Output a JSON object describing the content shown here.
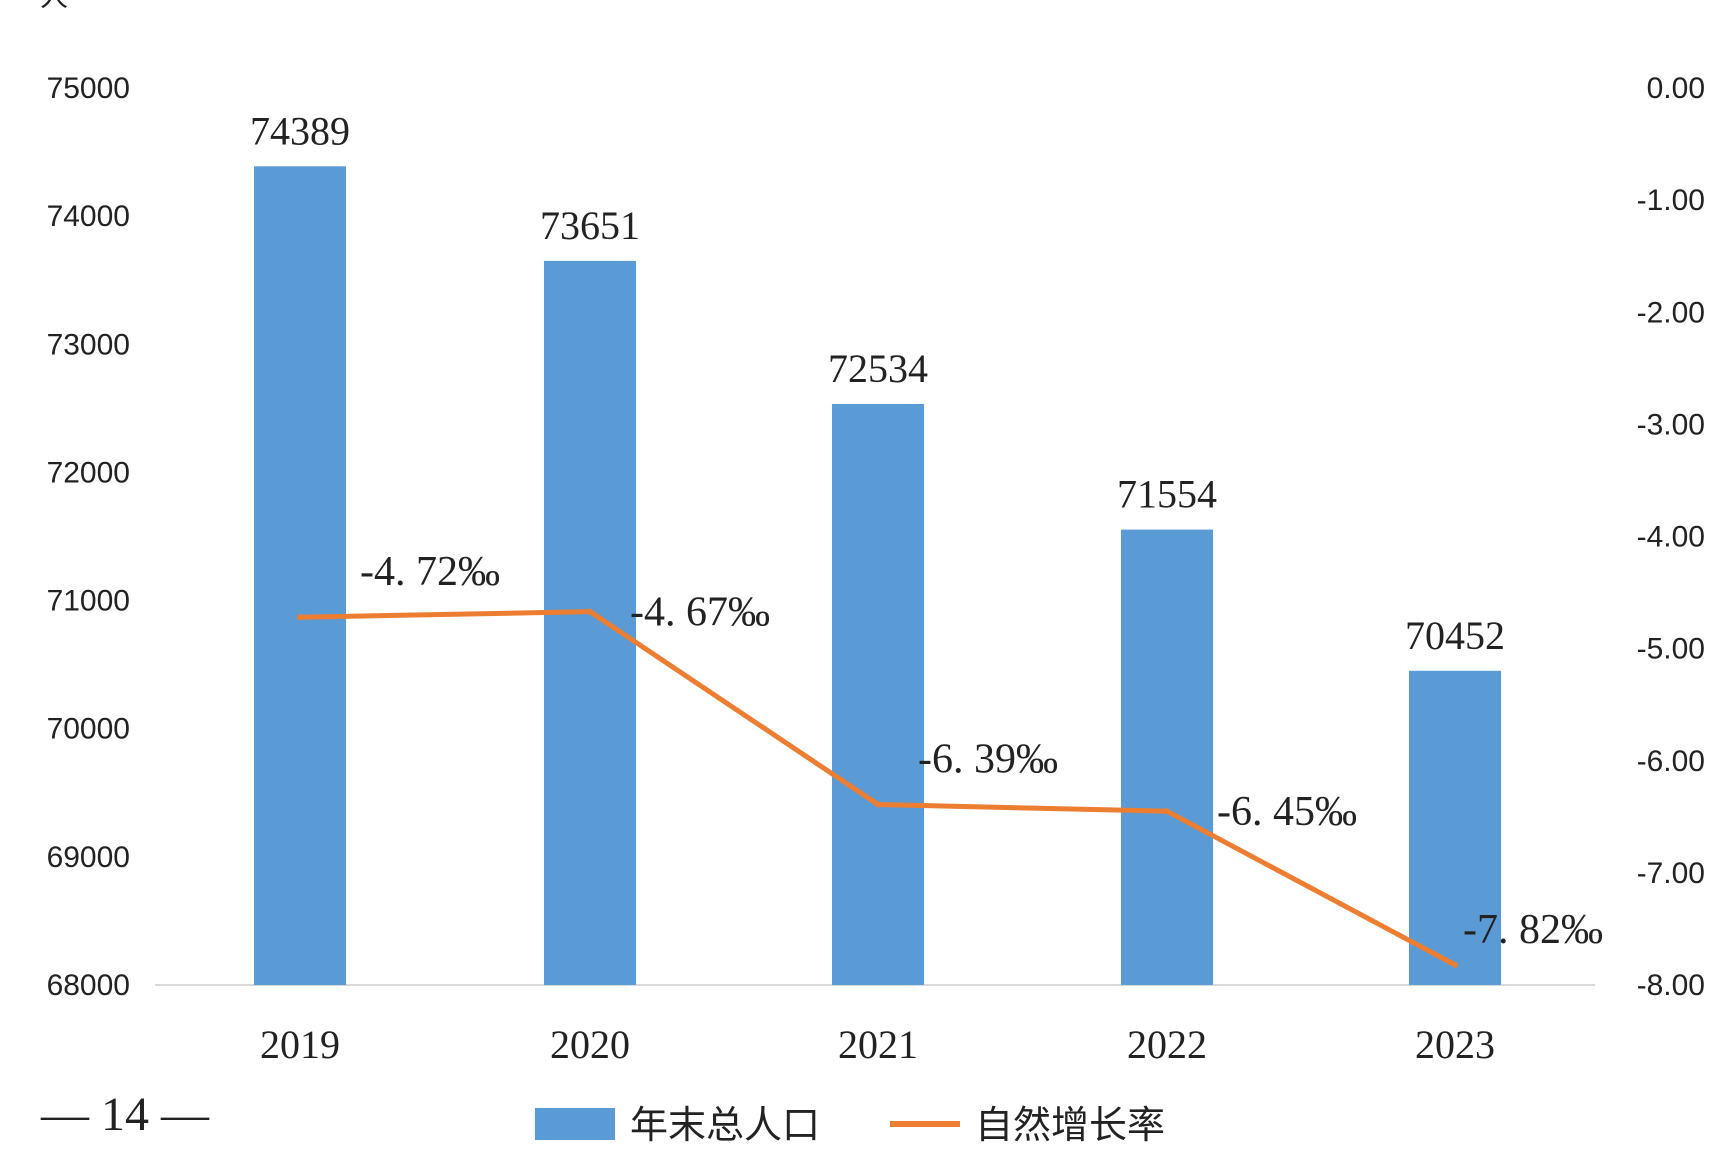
{
  "page_number": "— 14 —",
  "chart_data": {
    "type": "bar+line",
    "title": "",
    "y_unit_label": "人",
    "categories": [
      "2019",
      "2020",
      "2021",
      "2022",
      "2023"
    ],
    "series": [
      {
        "name": "年末总人口",
        "type": "bar",
        "axis": "left",
        "values": [
          74389,
          73651,
          72534,
          71554,
          70452
        ],
        "labels": [
          "74389",
          "73651",
          "72534",
          "71554",
          "70452"
        ],
        "color": "#5b9bd5"
      },
      {
        "name": "自然增长率",
        "type": "line",
        "axis": "right",
        "values": [
          -4.72,
          -4.67,
          -6.39,
          -6.45,
          -7.82
        ],
        "labels": [
          "-4. 72‰",
          "-4. 67‰",
          "-6. 39‰",
          "-6. 45‰",
          "-7. 82‰"
        ],
        "color": "#ed7d31"
      }
    ],
    "y_left": {
      "min": 68000,
      "max": 75000,
      "ticks": [
        "75000",
        "74000",
        "73000",
        "72000",
        "71000",
        "70000",
        "69000",
        "68000"
      ]
    },
    "y_right": {
      "min": -8.0,
      "max": 0.0,
      "ticks": [
        "0.00",
        "-1.00",
        "-2.00",
        "-3.00",
        "-4.00",
        "-5.00",
        "-6.00",
        "-7.00",
        "-8.00"
      ]
    },
    "grid": false,
    "legend_position": "bottom"
  }
}
